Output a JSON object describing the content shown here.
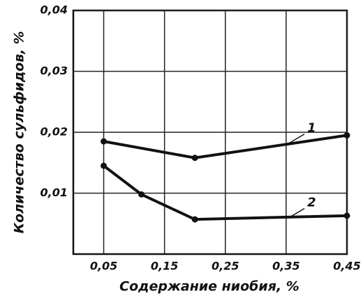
{
  "chart_data": {
    "type": "line",
    "xlabel": "Содержание ниобия, %",
    "ylabel": "Количество сульфидов, %",
    "xlim": [
      0,
      0.45
    ],
    "ylim": [
      0,
      0.04
    ],
    "xticks": [
      {
        "value": 0.05,
        "label": "0,05"
      },
      {
        "value": 0.15,
        "label": "0,15"
      },
      {
        "value": 0.25,
        "label": "0,25"
      },
      {
        "value": 0.35,
        "label": "0,35"
      },
      {
        "value": 0.45,
        "label": "0,45"
      }
    ],
    "yticks": [
      {
        "value": 0.01,
        "label": "0,01"
      },
      {
        "value": 0.02,
        "label": "0,02"
      },
      {
        "value": 0.03,
        "label": "0,03"
      },
      {
        "value": 0.04,
        "label": "0,04"
      }
    ],
    "grid": true,
    "series": [
      {
        "name": "1",
        "color": "#111111",
        "x": [
          0.05,
          0.2,
          0.45
        ],
        "values": [
          0.0185,
          0.0158,
          0.0195
        ]
      },
      {
        "name": "2",
        "color": "#111111",
        "x": [
          0.05,
          0.112,
          0.2,
          0.45
        ],
        "values": [
          0.0145,
          0.0098,
          0.0057,
          0.0063
        ]
      }
    ]
  }
}
